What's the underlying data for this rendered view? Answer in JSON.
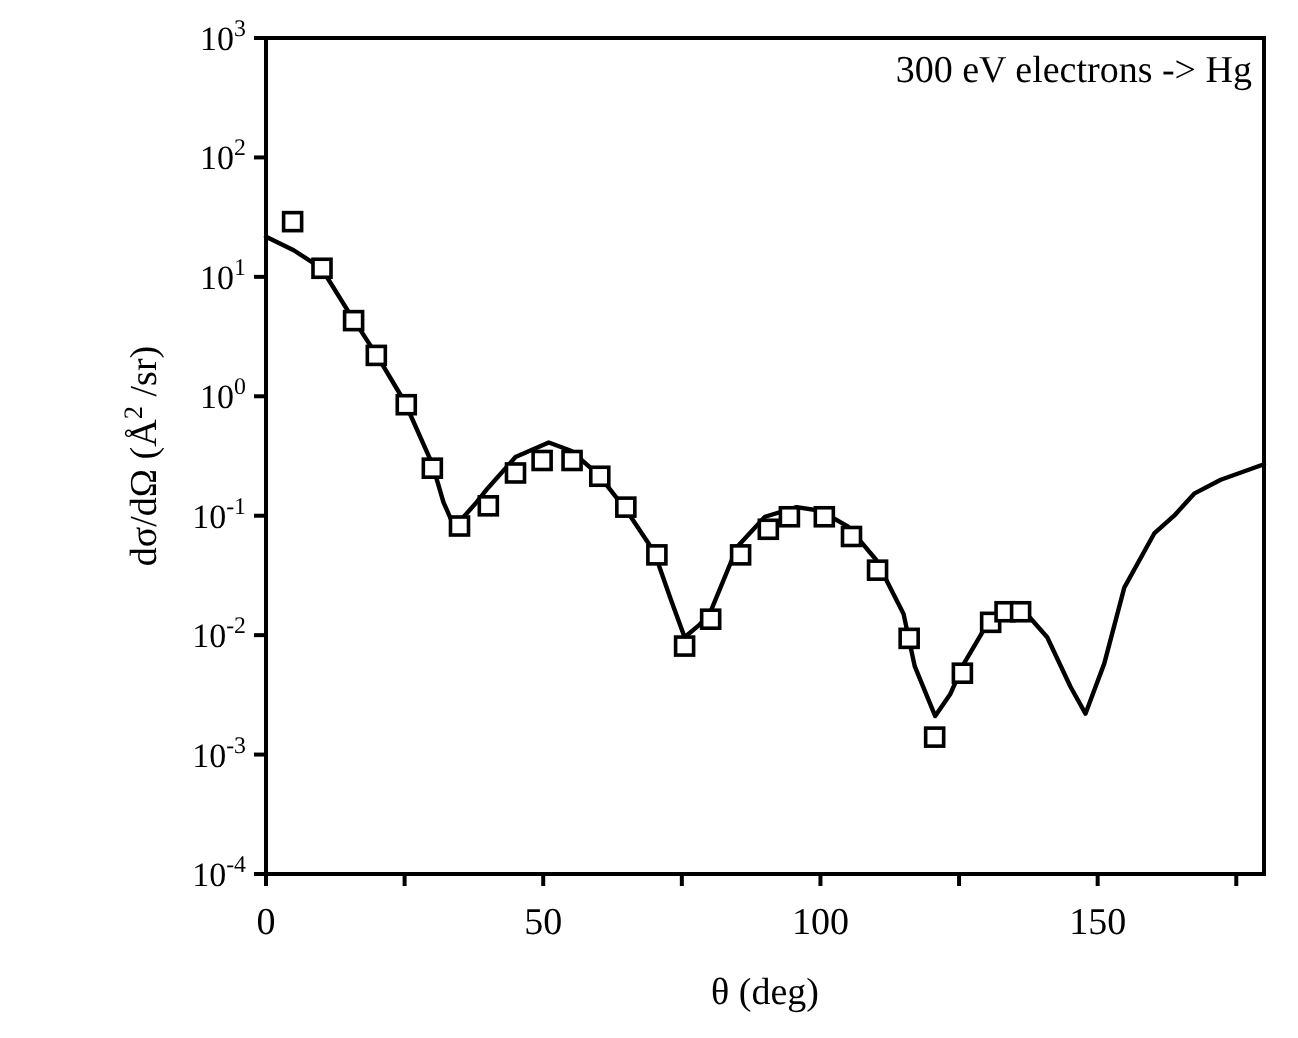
{
  "chart_data": {
    "type": "line",
    "xlabel": "θ (deg)",
    "ylabel": "dσ/dΩ  (Å$^{2}$ /sr)",
    "annotations": [
      "300 eV electrons -> Hg"
    ],
    "log": "y",
    "grid": false,
    "xlim": [
      0,
      180
    ],
    "xticks": [
      0,
      {
        "value": 25,
        "label": null
      },
      50,
      {
        "value": 75,
        "label": null
      },
      100,
      {
        "value": 125,
        "label": null
      },
      150,
      {
        "value": 175,
        "label": null
      }
    ],
    "ylim": [
      0.0001,
      1000
    ],
    "yticks": [
      {
        "value": 0.0001,
        "label": "10$^{-4}$"
      },
      {
        "value": 0.001,
        "label": "10$^{-3}$"
      },
      {
        "value": 0.01,
        "label": "10$^{-2}$"
      },
      {
        "value": 0.1,
        "label": "10$^{-1}$"
      },
      {
        "value": 1,
        "label": "10$^{0}$"
      },
      {
        "value": 10,
        "label": "10$^{1}$"
      },
      {
        "value": 100,
        "label": "10$^{2}$"
      },
      {
        "value": 1000,
        "label": "10$^{3}$"
      }
    ],
    "series": [
      {
        "color": "#000000",
        "marker": "none",
        "line_style": "solid",
        "x": [
          0,
          5,
          10,
          15,
          20,
          25,
          30,
          32,
          34,
          38,
          40,
          45,
          51,
          55,
          60,
          65,
          70,
          73,
          75.5,
          78,
          80,
          85,
          90,
          95.7,
          100,
          105,
          110,
          115,
          117,
          120.7,
          123.4,
          125.9,
          130.1,
          134,
          136.1,
          140.9,
          145.1,
          147.8,
          151.2,
          154.8,
          160.2,
          163.8,
          167.4,
          172.2,
          180
        ],
        "values": [
          21.7,
          16.7,
          11.8,
          5,
          2.2,
          0.9,
          0.27,
          0.13,
          0.08,
          0.13,
          0.17,
          0.31,
          0.41,
          0.35,
          0.22,
          0.111,
          0.05,
          0.02,
          0.0096,
          0.012,
          0.015,
          0.055,
          0.098,
          0.118,
          0.11,
          0.081,
          0.043,
          0.015,
          0.0055,
          0.0021,
          0.0032,
          0.0058,
          0.0124,
          0.017,
          0.0172,
          0.0096,
          0.0037,
          0.0022,
          0.0058,
          0.025,
          0.071,
          0.1,
          0.153,
          0.2,
          0.27
        ]
      },
      {
        "type": "scatter",
        "color": "#000000",
        "marker": "square",
        "x": [
          4.8,
          10.1,
          15.8,
          19.9,
          25.3,
          30,
          34.9,
          40.1,
          45,
          49.8,
          55.2,
          60.2,
          64.9,
          70.5,
          75.5,
          80.2,
          85.6,
          90.6,
          94.4,
          100.7,
          105.6,
          110.3,
          116,
          120.6,
          125.6,
          130.7,
          133.3,
          136.1
        ],
        "values": [
          29,
          11.8,
          4.3,
          2.2,
          0.85,
          0.25,
          0.082,
          0.121,
          0.228,
          0.29,
          0.29,
          0.214,
          0.118,
          0.047,
          0.0081,
          0.0136,
          0.047,
          0.077,
          0.098,
          0.098,
          0.067,
          0.035,
          0.0094,
          0.0014,
          0.0048,
          0.0128,
          0.0157,
          0.0157
        ]
      }
    ]
  }
}
